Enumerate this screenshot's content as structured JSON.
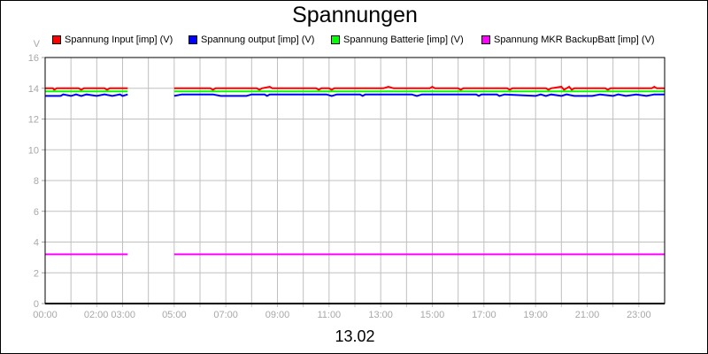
{
  "chart_data": {
    "type": "line",
    "title": "Spannungen",
    "xlabel": "13.02",
    "ylabel": "V",
    "ylim": [
      0,
      16
    ],
    "yticks": [
      0,
      2,
      4,
      6,
      8,
      10,
      12,
      14,
      16
    ],
    "xlim_hours": [
      0,
      24
    ],
    "xtick_labels": [
      "00:00",
      "02:00 03:00",
      "05:00",
      "07:00",
      "09:00",
      "11:00",
      "13:00",
      "15:00",
      "17:00",
      "19:00",
      "21:00",
      "23:00"
    ],
    "xtick_hours": [
      0,
      2.5,
      5,
      7,
      9,
      11,
      13,
      15,
      17,
      19,
      21,
      23
    ],
    "grid": true,
    "legend_position": "top",
    "series": [
      {
        "name": "Spannung Input [imp] (V)",
        "color": "#ff0000",
        "points": [
          [
            0,
            14.0
          ],
          [
            0.3,
            14.0
          ],
          [
            0.35,
            13.9
          ],
          [
            0.45,
            14.0
          ],
          [
            1.3,
            14.0
          ],
          [
            1.4,
            13.9
          ],
          [
            1.5,
            14.0
          ],
          [
            2.3,
            14.0
          ],
          [
            2.4,
            13.9
          ],
          [
            2.5,
            14.0
          ],
          [
            3.2,
            14.0
          ],
          null,
          [
            5.0,
            14.0
          ],
          [
            6.4,
            14.0
          ],
          [
            6.5,
            13.9
          ],
          [
            6.6,
            14.0
          ],
          [
            8.2,
            14.0
          ],
          [
            8.3,
            13.9
          ],
          [
            8.4,
            14.0
          ],
          [
            8.7,
            14.1
          ],
          [
            8.8,
            14.0
          ],
          [
            10.5,
            14.0
          ],
          [
            10.6,
            13.9
          ],
          [
            10.7,
            14.0
          ],
          [
            11.0,
            14.0
          ],
          [
            11.1,
            13.9
          ],
          [
            11.2,
            14.0
          ],
          [
            13.1,
            14.0
          ],
          [
            13.3,
            14.1
          ],
          [
            13.5,
            14.0
          ],
          [
            14.9,
            14.0
          ],
          [
            15.0,
            14.1
          ],
          [
            15.1,
            14.0
          ],
          [
            16.0,
            14.0
          ],
          [
            16.1,
            13.9
          ],
          [
            16.2,
            14.0
          ],
          [
            17.9,
            14.0
          ],
          [
            18.0,
            13.9
          ],
          [
            18.1,
            14.0
          ],
          [
            19.4,
            14.0
          ],
          [
            19.5,
            13.9
          ],
          [
            19.6,
            14.0
          ],
          [
            20.0,
            14.1
          ],
          [
            20.1,
            13.9
          ],
          [
            20.3,
            14.1
          ],
          [
            20.4,
            13.9
          ],
          [
            20.5,
            14.0
          ],
          [
            21.7,
            14.0
          ],
          [
            21.8,
            13.9
          ],
          [
            21.9,
            14.0
          ],
          [
            23.5,
            14.0
          ],
          [
            23.6,
            14.1
          ],
          [
            23.7,
            14.0
          ],
          [
            24,
            14.0
          ]
        ]
      },
      {
        "name": "Spannung output [imp] (V)",
        "color": "#0000ff",
        "points": [
          [
            0,
            13.5
          ],
          [
            0.6,
            13.5
          ],
          [
            0.7,
            13.6
          ],
          [
            1.0,
            13.5
          ],
          [
            1.2,
            13.6
          ],
          [
            1.4,
            13.5
          ],
          [
            1.6,
            13.6
          ],
          [
            2.0,
            13.5
          ],
          [
            2.3,
            13.6
          ],
          [
            2.6,
            13.5
          ],
          [
            2.9,
            13.6
          ],
          [
            3.0,
            13.5
          ],
          [
            3.2,
            13.6
          ],
          null,
          [
            5.0,
            13.5
          ],
          [
            5.3,
            13.6
          ],
          [
            6.5,
            13.6
          ],
          [
            6.8,
            13.5
          ],
          [
            7.8,
            13.5
          ],
          [
            8.0,
            13.6
          ],
          [
            8.5,
            13.6
          ],
          [
            8.6,
            13.5
          ],
          [
            8.7,
            13.6
          ],
          [
            10.9,
            13.6
          ],
          [
            11.1,
            13.5
          ],
          [
            11.3,
            13.6
          ],
          [
            12.2,
            13.6
          ],
          [
            12.3,
            13.5
          ],
          [
            12.4,
            13.6
          ],
          [
            14.2,
            13.6
          ],
          [
            14.4,
            13.5
          ],
          [
            14.6,
            13.6
          ],
          [
            16.7,
            13.6
          ],
          [
            16.8,
            13.5
          ],
          [
            16.9,
            13.6
          ],
          [
            17.5,
            13.6
          ],
          [
            17.6,
            13.5
          ],
          [
            17.8,
            13.6
          ],
          [
            19.0,
            13.5
          ],
          [
            19.2,
            13.6
          ],
          [
            19.4,
            13.5
          ],
          [
            19.6,
            13.6
          ],
          [
            20.0,
            13.5
          ],
          [
            20.2,
            13.6
          ],
          [
            20.5,
            13.5
          ],
          [
            21.2,
            13.5
          ],
          [
            21.5,
            13.6
          ],
          [
            22.0,
            13.5
          ],
          [
            22.2,
            13.6
          ],
          [
            22.5,
            13.5
          ],
          [
            22.9,
            13.6
          ],
          [
            23.3,
            13.5
          ],
          [
            23.6,
            13.6
          ],
          [
            24,
            13.6
          ]
        ]
      },
      {
        "name": "Spannung Batterie [imp] (V)",
        "color": "#00ff00",
        "points": [
          [
            0,
            13.8
          ],
          [
            3.2,
            13.8
          ],
          null,
          [
            5.0,
            13.8
          ],
          [
            24,
            13.8
          ]
        ]
      },
      {
        "name": "Spannung MKR BackupBatt [imp] (V)",
        "color": "#ff00ff",
        "points": [
          [
            0,
            3.2
          ],
          [
            3.2,
            3.2
          ],
          null,
          [
            5.0,
            3.2
          ],
          [
            24,
            3.2
          ]
        ]
      }
    ]
  }
}
